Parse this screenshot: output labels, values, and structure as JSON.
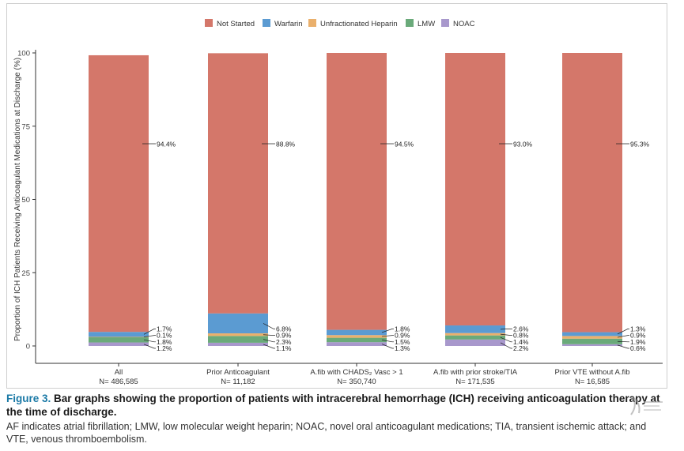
{
  "chart_data": {
    "type": "bar",
    "stacked": true,
    "ylabel": "Proportion of ICH Patients Receiving Anticoagulant Medications at Discharge (%)",
    "ylim": [
      0,
      100
    ],
    "yticks": [
      0,
      25,
      50,
      75,
      100
    ],
    "grid": false,
    "legend_position": "top",
    "categories": [
      {
        "name": "All",
        "n": "N= 486,585"
      },
      {
        "name": "Prior Anticoagulant",
        "n": "N= 11,182"
      },
      {
        "name": "A.fib with CHADS₂ Vasc > 1",
        "n": "N= 350,740"
      },
      {
        "name": "A.fib with prior stroke/TIA",
        "n": "N= 171,535"
      },
      {
        "name": "Prior VTE without A.fib",
        "n": "N= 16,585"
      }
    ],
    "series": [
      {
        "name": "NOAC",
        "color": "#a898cc",
        "values": [
          1.2,
          1.1,
          1.3,
          2.2,
          0.6
        ],
        "labels": [
          "1.2%",
          "1.1%",
          "1.3%",
          "2.2%",
          "0.6%"
        ]
      },
      {
        "name": "LMW",
        "color": "#6aaa7a",
        "values": [
          1.8,
          2.3,
          1.5,
          1.4,
          1.9
        ],
        "labels": [
          "1.8%",
          "2.3%",
          "1.5%",
          "1.4%",
          "1.9%"
        ]
      },
      {
        "name": "Unfractionated Heparin",
        "color": "#eab06c",
        "values": [
          0.1,
          0.9,
          0.9,
          0.8,
          0.9
        ],
        "labels": [
          "0.1%",
          "0.9%",
          "0.9%",
          "0.8%",
          "0.9%"
        ]
      },
      {
        "name": "Warfarin",
        "color": "#5b9bd2",
        "values": [
          1.7,
          6.8,
          1.8,
          2.6,
          1.3
        ],
        "labels": [
          "1.7%",
          "6.8%",
          "1.8%",
          "2.6%",
          "1.3%"
        ]
      },
      {
        "name": "Not Started",
        "color": "#d4776a",
        "values": [
          94.4,
          88.8,
          94.5,
          93.0,
          95.3
        ],
        "labels": [
          "94.4%",
          "88.8%",
          "94.5%",
          "93.0%",
          "95.3%"
        ]
      }
    ],
    "legend_order": [
      "Not Started",
      "Warfarin",
      "Unfractionated Heparin",
      "LMW",
      "NOAC"
    ]
  },
  "caption": {
    "label": "Figure 3.",
    "title": "Bar graphs showing the proportion of patients with intracerebral hemorrhage (ICH) receiving anticoagulation therapy at the time of discharge.",
    "notes": "AF indicates atrial fibrillation; LMW, low molecular weight heparin; NOAC, novel oral anticoagulant medications; TIA, transient ischemic attack; and VTE, venous thromboembolism."
  }
}
